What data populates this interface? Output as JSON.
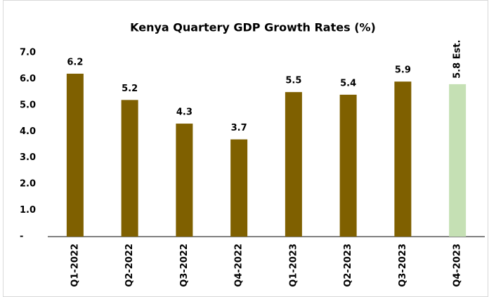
{
  "chart_data": {
    "type": "bar",
    "title": "Kenya Quartery GDP Growth Rates (%)",
    "categories": [
      "Q1-2022",
      "Q2-2022",
      "Q3-2022",
      "Q4-2022",
      "Q1-2023",
      "Q2-2023",
      "Q3-2023",
      "Q4-2023"
    ],
    "values": [
      6.2,
      5.2,
      4.3,
      3.7,
      5.5,
      5.4,
      5.9,
      5.8
    ],
    "value_labels": [
      "6.2",
      "5.2",
      "4.3",
      "3.7",
      "5.5",
      "5.4",
      "5.9",
      "5.8 Est."
    ],
    "colors": [
      "#7f6000",
      "#7f6000",
      "#7f6000",
      "#7f6000",
      "#7f6000",
      "#7f6000",
      "#7f6000",
      "#c5e0b4"
    ],
    "value_label_colors": [
      "#000000",
      "#000000",
      "#000000",
      "#000000",
      "#000000",
      "#000000",
      "#000000",
      "#ff0000"
    ],
    "ylim": [
      0,
      7
    ],
    "yticks": [
      {
        "value": 0,
        "label": "-"
      },
      {
        "value": 1,
        "label": "1.0"
      },
      {
        "value": 2,
        "label": "2.0"
      },
      {
        "value": 3,
        "label": "3.0"
      },
      {
        "value": 4,
        "label": "4.0"
      },
      {
        "value": 5,
        "label": "5.0"
      },
      {
        "value": 6,
        "label": "6.0"
      },
      {
        "value": 7,
        "label": "7.0"
      }
    ],
    "grid": false
  }
}
